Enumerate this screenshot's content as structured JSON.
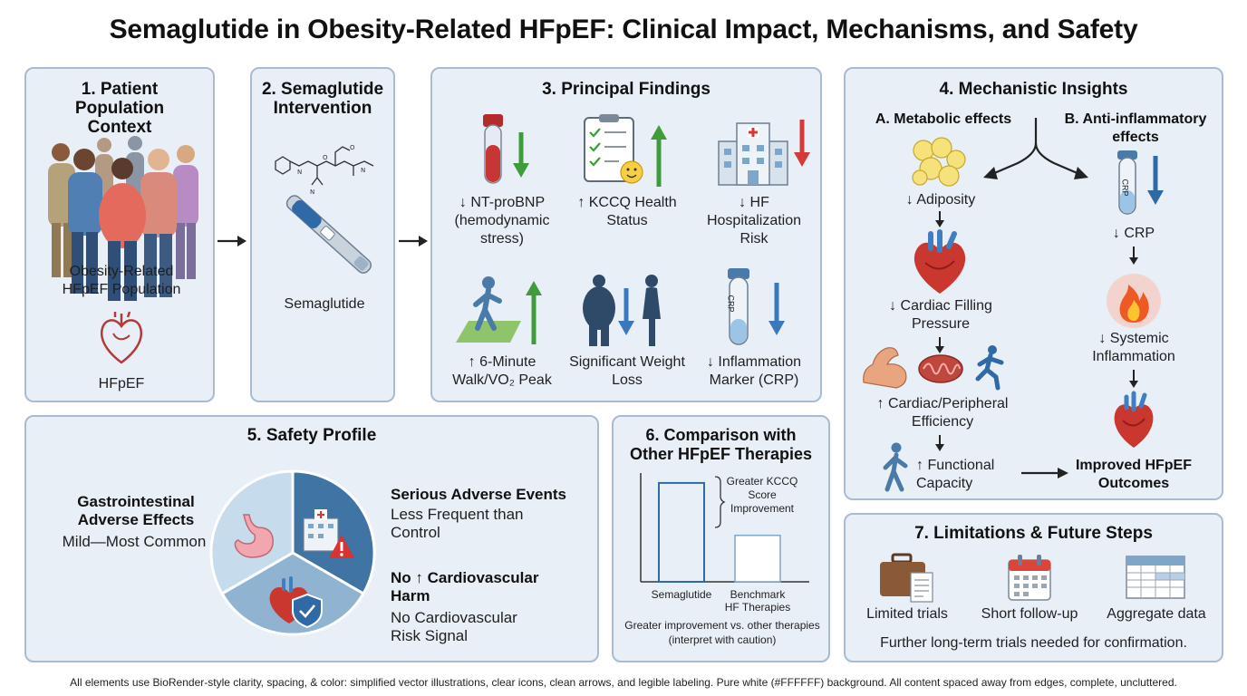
{
  "title": "Semaglutide in Obesity-Related HFpEF: Clinical Impact, Mechanisms, and Safety",
  "panel1": {
    "title": "1. Patient Population Context",
    "population_label": "Obesity-Related HFpEF Population",
    "hfpef_label": "HFpEF"
  },
  "panel2": {
    "title": "2. Semaglutide Intervention",
    "drug_label": "Semaglutide"
  },
  "panel3": {
    "title": "3. Principal Findings",
    "findings": [
      {
        "label": "↓ NT-proBNP (hemodynamic stress)",
        "icon": "blood-tube-icon",
        "arrow": "down"
      },
      {
        "label": "↑ KCCQ Health Status",
        "icon": "clipboard-checklist-icon",
        "arrow": "up"
      },
      {
        "label": "↓ HF Hospitalization Risk",
        "icon": "hospital-icon",
        "arrow": "down"
      },
      {
        "label": "↑ 6-Minute Walk/VO₂ Peak",
        "icon": "walking-person-icon",
        "arrow": "up"
      },
      {
        "label": "Significant Weight Loss",
        "icon": "weight-loss-silhouettes-icon",
        "arrow": "down"
      },
      {
        "label": "↓ Inflammation Marker (CRP)",
        "icon": "crp-tube-icon",
        "arrow": "down"
      }
    ],
    "crp_text": "CRP"
  },
  "panel4": {
    "title": "4. Mechanistic Insights",
    "branch_a": "A. Metabolic effects",
    "branch_b": "B. Anti-inflammatory effects",
    "adiposity": "↓ Adiposity",
    "filling": "↓ Cardiac Filling Pressure",
    "efficiency": "↑ Cardiac/Peripheral Efficiency",
    "functional": "↑ Functional Capacity",
    "crp": "↓ CRP",
    "crp_tube_text": "CRP",
    "inflammation": "↓ Systemic Inflammation",
    "outcome": "Improved HFpEF Outcomes"
  },
  "panel5": {
    "title": "5. Safety Profile",
    "gi_title": "Gastrointestinal Adverse Effects",
    "gi_sub": "Mild—Most Common",
    "sae_title": "Serious Adverse Events",
    "sae_sub": "Less Frequent than Control",
    "cv_title": "No ↑ Cardiovascular Harm",
    "cv_sub": "No Cardiovascular Risk Signal",
    "colors": {
      "gi": "#c6dbeb",
      "sae": "#3f74a4",
      "cv": "#8fb3d1"
    }
  },
  "panel6": {
    "title": "6. Comparison with Other HFpEF Therapies",
    "annotation": "Greater KCCQ Score Improvement",
    "caption": "Greater improvement vs. other therapies (interpret with caution)",
    "chart_data": {
      "type": "bar",
      "categories": [
        "Semaglutide",
        "Benchmark HF Therapies"
      ],
      "values": [
        10,
        4.7
      ],
      "ylim": [
        0,
        11
      ],
      "grid": false,
      "xlabel": "",
      "ylabel": ""
    }
  },
  "panel7": {
    "title": "7. Limitations & Future Steps",
    "items": [
      "Limited trials",
      "Short follow-up",
      "Aggregate data"
    ],
    "note": "Further long-term trials needed for confirmation."
  },
  "footer": "All elements use BioRender-style clarity, spacing, & color: simplified vector illustrations, clear icons, clean arrows, and legible labeling. Pure white (#FFFFFF) background. All content spaced away from edges, complete, uncluttered."
}
